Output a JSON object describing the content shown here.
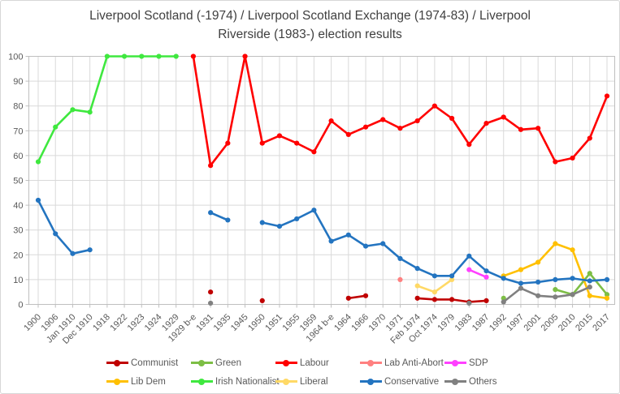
{
  "title": {
    "line1": "Liverpool Scotland (-1974) / Liverpool Scotland Exchange (1974-83) / Liverpool",
    "line2": "Riverside (1983-) election results"
  },
  "chart_data": {
    "type": "line",
    "title": "Liverpool Scotland (-1974) / Liverpool Scotland Exchange (1974-83) / Liverpool Riverside (1983-) election results",
    "xlabel": "",
    "ylabel": "",
    "grid": true,
    "legend_position": "bottom",
    "y_axis": {
      "min": 0,
      "max": 100,
      "step": 10
    },
    "categories": [
      "1900",
      "1906",
      "Jan 1910",
      "Dec 1910",
      "1918",
      "1922",
      "1923",
      "1924",
      "1929",
      "1929 b-e",
      "1931",
      "1935",
      "1945",
      "1950",
      "1951",
      "1955",
      "1959",
      "1964 b-e",
      "1964",
      "1966",
      "1970",
      "1971",
      "Feb 1974",
      "Oct 1974",
      "1979",
      "1983",
      "1987",
      "1992",
      "1997",
      "2001",
      "2005",
      "2010",
      "2015",
      "2017"
    ],
    "series": [
      {
        "name": "Communist",
        "color": "#C00000",
        "values": [
          null,
          null,
          null,
          null,
          null,
          null,
          null,
          null,
          null,
          null,
          5,
          null,
          null,
          1.5,
          null,
          null,
          null,
          null,
          2.5,
          3.5,
          null,
          null,
          2.5,
          2,
          2,
          1,
          1.5,
          null,
          null,
          null,
          null,
          null,
          null,
          null
        ]
      },
      {
        "name": "Green",
        "color": "#7DBE45",
        "values": [
          null,
          null,
          null,
          null,
          null,
          null,
          null,
          null,
          null,
          null,
          null,
          null,
          null,
          null,
          null,
          null,
          null,
          null,
          null,
          null,
          null,
          null,
          null,
          null,
          null,
          null,
          null,
          2.5,
          null,
          null,
          6,
          4,
          12.5,
          4
        ]
      },
      {
        "name": "Labour",
        "color": "#FF0000",
        "values": [
          null,
          null,
          null,
          null,
          null,
          null,
          null,
          null,
          null,
          100,
          56,
          65,
          100,
          65,
          68,
          65,
          61.5,
          74,
          68.5,
          71.5,
          74.5,
          71,
          74,
          80,
          75,
          64.5,
          73,
          75.5,
          70.5,
          71,
          57.5,
          59,
          67,
          84
        ]
      },
      {
        "name": "Lab Anti-Abort",
        "color": "#FF8080",
        "values": [
          null,
          null,
          null,
          null,
          null,
          null,
          null,
          null,
          null,
          null,
          null,
          null,
          null,
          null,
          null,
          null,
          null,
          null,
          null,
          null,
          null,
          10,
          null,
          null,
          null,
          null,
          null,
          null,
          null,
          null,
          null,
          null,
          null,
          null
        ]
      },
      {
        "name": "SDP",
        "color": "#FF40FF",
        "values": [
          null,
          null,
          null,
          null,
          null,
          null,
          null,
          null,
          null,
          null,
          null,
          null,
          null,
          null,
          null,
          null,
          null,
          null,
          null,
          null,
          null,
          null,
          null,
          null,
          null,
          14,
          11,
          null,
          null,
          null,
          null,
          null,
          null,
          null
        ]
      },
      {
        "name": "Lib Dem",
        "color": "#FFC000",
        "values": [
          null,
          null,
          null,
          null,
          null,
          null,
          null,
          null,
          null,
          null,
          null,
          null,
          null,
          null,
          null,
          null,
          null,
          null,
          null,
          null,
          null,
          null,
          null,
          null,
          null,
          null,
          null,
          11.5,
          14,
          17,
          24.5,
          22,
          3.5,
          2.5
        ]
      },
      {
        "name": "Irish Nationalist",
        "color": "#3FE83F",
        "values": [
          57.5,
          71.5,
          78.5,
          77.5,
          100,
          100,
          100,
          100,
          100,
          null,
          null,
          null,
          null,
          null,
          null,
          null,
          null,
          null,
          null,
          null,
          null,
          null,
          null,
          null,
          null,
          null,
          null,
          null,
          null,
          null,
          null,
          null,
          null,
          null
        ]
      },
      {
        "name": "Liberal",
        "color": "#FFD966",
        "values": [
          null,
          null,
          null,
          null,
          null,
          null,
          null,
          null,
          null,
          null,
          null,
          null,
          null,
          null,
          null,
          null,
          null,
          null,
          null,
          null,
          null,
          null,
          7.5,
          5,
          10,
          null,
          null,
          null,
          null,
          null,
          null,
          null,
          null,
          null
        ]
      },
      {
        "name": "Conservative",
        "color": "#2374C0",
        "values": [
          42,
          28.5,
          20.5,
          22,
          null,
          null,
          null,
          null,
          null,
          null,
          37,
          34,
          null,
          33,
          31.5,
          34.5,
          38,
          25.5,
          28,
          23.5,
          24.5,
          18.5,
          14.5,
          11.5,
          11.5,
          19.5,
          13.5,
          10.5,
          8.5,
          9,
          10,
          10.5,
          9.5,
          10
        ]
      },
      {
        "name": "Others",
        "color": "#808080",
        "values": [
          null,
          null,
          null,
          null,
          null,
          null,
          null,
          null,
          null,
          null,
          0.5,
          null,
          null,
          null,
          null,
          null,
          null,
          null,
          null,
          null,
          null,
          null,
          null,
          null,
          null,
          0.5,
          null,
          1,
          6.5,
          3.5,
          3,
          4,
          7,
          null
        ]
      }
    ]
  },
  "style": {
    "grid_color": "#D9D9D9",
    "axis_color": "#BFBFBF",
    "tick_text_color": "#595959",
    "title_color": "#404040"
  }
}
